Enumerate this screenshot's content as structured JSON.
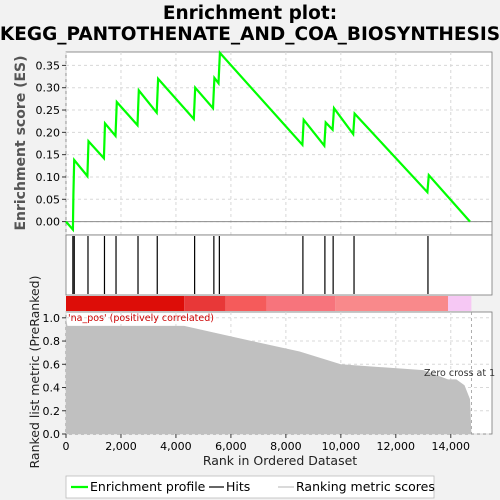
{
  "chart_data": [
    {
      "type": "line",
      "panel": "enrichment-score",
      "title": "Enrichment plot: KEGG_PANTOTHENATE_AND_COA_BIOSYNTHESIS",
      "title_lines": [
        "Enrichment plot:",
        "KEGG_PANTOTHENATE_AND_COA_BIOSYNTHESIS"
      ],
      "ylabel": "Enrichment score (ES)",
      "ylim": [
        -0.03,
        0.38
      ],
      "xlim": [
        0,
        15500
      ],
      "yticks": [
        0.0,
        0.05,
        0.1,
        0.15,
        0.2,
        0.25,
        0.3,
        0.35
      ],
      "ytick_labels": [
        "0.00",
        "0.05",
        "0.10",
        "0.15",
        "0.20",
        "0.25",
        "0.30",
        "0.35"
      ],
      "grid": true,
      "color": "#00ff00",
      "series": [
        {
          "name": "Enrichment profile",
          "x": [
            0,
            250,
            270,
            300,
            780,
            820,
            1380,
            1420,
            1800,
            1850,
            2600,
            2650,
            3300,
            3350,
            4650,
            4700,
            5350,
            5400,
            5550,
            5600,
            8600,
            8650,
            9400,
            9450,
            9700,
            9750,
            10450,
            10500,
            13150,
            13200,
            14700
          ],
          "y": [
            0.0,
            -0.018,
            0.06,
            0.138,
            0.102,
            0.18,
            0.142,
            0.22,
            0.192,
            0.268,
            0.216,
            0.294,
            0.244,
            0.32,
            0.23,
            0.3,
            0.254,
            0.322,
            0.31,
            0.378,
            0.172,
            0.228,
            0.17,
            0.222,
            0.206,
            0.254,
            0.196,
            0.242,
            0.066,
            0.104,
            0.0
          ]
        }
      ]
    },
    {
      "type": "scatter",
      "panel": "hits",
      "legend_name": "Hits",
      "x": [
        250,
        300,
        800,
        1400,
        1820,
        2620,
        3320,
        4680,
        5380,
        5580,
        8620,
        9420,
        9720,
        10480,
        13170
      ]
    },
    {
      "type": "heatmap",
      "panel": "rank-colorbar",
      "segments": [
        {
          "from": 0,
          "to": 4300,
          "color": "#dd0d08"
        },
        {
          "from": 4300,
          "to": 5800,
          "color": "#e83838"
        },
        {
          "from": 5800,
          "to": 7300,
          "color": "#f55b5b"
        },
        {
          "from": 7300,
          "to": 9800,
          "color": "#f7747c"
        },
        {
          "from": 9800,
          "to": 13900,
          "color": "#f9898b"
        },
        {
          "from": 13900,
          "to": 14750,
          "color": "#f6c8f4"
        }
      ]
    },
    {
      "type": "area",
      "panel": "ranked-metric",
      "ylabel": "Ranked list metric (PreRanked)",
      "xlabel": "Rank in Ordered Dataset",
      "xlim": [
        0,
        15500
      ],
      "ylim": [
        0,
        1.05
      ],
      "xticks": [
        0,
        2000,
        4000,
        6000,
        8000,
        10000,
        12000,
        14000
      ],
      "xtick_labels": [
        "0",
        "2,000",
        "4,000",
        "6,000",
        "8,000",
        "10,000",
        "12,000",
        "14,000"
      ],
      "yticks": [
        0.0,
        0.2,
        0.4,
        0.6,
        0.8,
        1.0
      ],
      "ytick_labels": [
        "0.0",
        "0.2",
        "0.4",
        "0.6",
        "0.8",
        "1.0"
      ],
      "grid": true,
      "color": "#c0c0c0",
      "series": [
        {
          "name": "Ranking metric scores",
          "x": [
            0,
            50,
            4300,
            6000,
            8500,
            10000,
            13000,
            13900,
            14200,
            14500,
            14700,
            14750
          ],
          "y": [
            1.0,
            0.93,
            0.93,
            0.84,
            0.71,
            0.6,
            0.55,
            0.47,
            0.47,
            0.42,
            0.3,
            0.0
          ]
        }
      ],
      "annotations": {
        "positive_label": "'na_pos' (positively correlated)",
        "zero_cross_label": "Zero cross at 1",
        "zero_cross_x": 14750
      }
    }
  ],
  "legend": {
    "items": [
      {
        "label": "Enrichment profile",
        "color": "#00ff00"
      },
      {
        "label": "Hits",
        "color": "#000000"
      },
      {
        "label": "Ranking metric scores",
        "color": "#c0c0c0"
      }
    ]
  }
}
